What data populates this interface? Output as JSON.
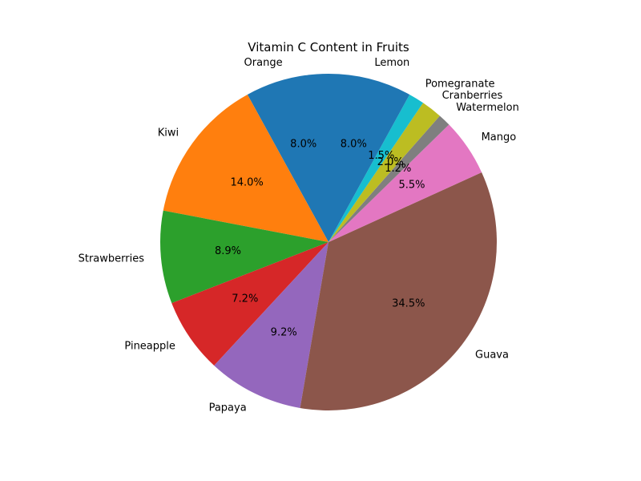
{
  "chart_data": {
    "type": "pie",
    "title": "Vitamin C Content in Fruits",
    "start_angle_deg": 90,
    "direction": "counterclockwise",
    "slices": [
      {
        "label": "Orange",
        "value": 8.0,
        "pct_label": "8.0%",
        "color": "#1f77b4"
      },
      {
        "label": "Kiwi",
        "value": 14.0,
        "pct_label": "14.0%",
        "color": "#ff7f0e"
      },
      {
        "label": "Strawberries",
        "value": 8.9,
        "pct_label": "8.9%",
        "color": "#2ca02c"
      },
      {
        "label": "Pineapple",
        "value": 7.2,
        "pct_label": "7.2%",
        "color": "#d62728"
      },
      {
        "label": "Papaya",
        "value": 9.2,
        "pct_label": "9.2%",
        "color": "#9467bd"
      },
      {
        "label": "Guava",
        "value": 34.5,
        "pct_label": "34.5%",
        "color": "#8c564b"
      },
      {
        "label": "Mango",
        "value": 5.5,
        "pct_label": "5.5%",
        "color": "#e377c2"
      },
      {
        "label": "Watermelon",
        "value": 1.2,
        "pct_label": "1.2%",
        "color": "#7f7f7f"
      },
      {
        "label": "Cranberries",
        "value": 2.0,
        "pct_label": "2.0%",
        "color": "#bcbd22"
      },
      {
        "label": "Pomegranate",
        "value": 1.5,
        "pct_label": "1.5%",
        "color": "#17becf"
      },
      {
        "label": "Lemon",
        "value": 8.0,
        "pct_label": "8.0%",
        "color": "#1f77b4"
      }
    ]
  }
}
